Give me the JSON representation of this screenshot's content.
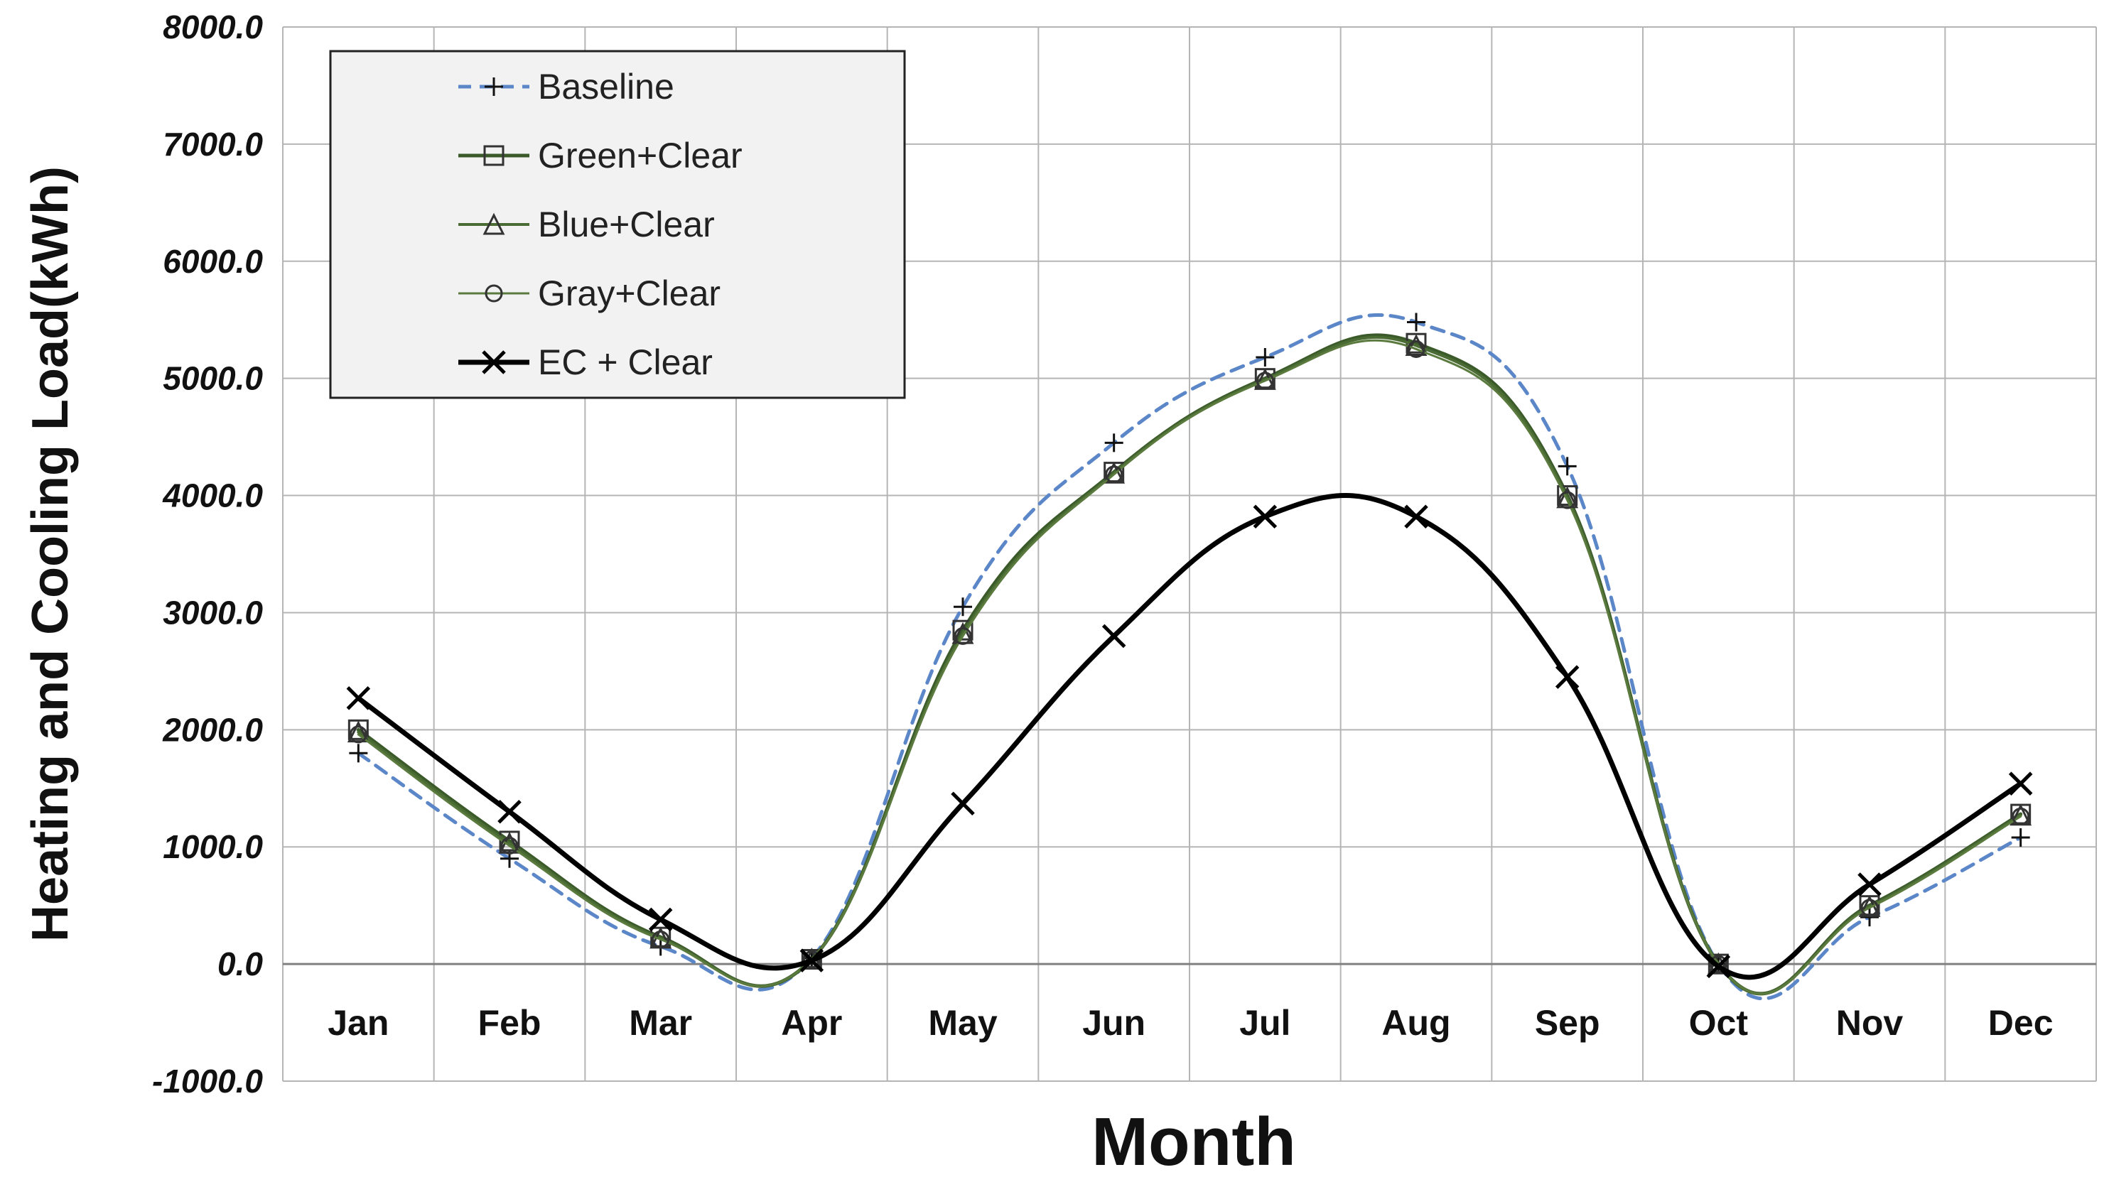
{
  "chart_data": {
    "type": "line",
    "title": "",
    "xlabel": "Month",
    "ylabel": "Heating and Cooling Load(kWh)",
    "ylim": [
      -1000,
      8000
    ],
    "yticks": [
      "8000.0",
      "7000.0",
      "6000.0",
      "5000.0",
      "4000.0",
      "3000.0",
      "2000.0",
      "1000.0",
      "0.0",
      "-1000.0"
    ],
    "ytick_values": [
      8000,
      7000,
      6000,
      5000,
      4000,
      3000,
      2000,
      1000,
      0,
      -1000
    ],
    "grid": true,
    "legend_position": "top-left",
    "categories": [
      "Jan",
      "Feb",
      "Mar",
      "Apr",
      "May",
      "Jun",
      "Jul",
      "Aug",
      "Sep",
      "Oct",
      "Nov",
      "Dec"
    ],
    "series": [
      {
        "name": "Baseline",
        "marker": "plus",
        "color": "#5b86c8",
        "dashed": true,
        "width": 5,
        "values": [
          1800,
          900,
          150,
          50,
          3050,
          4450,
          5180,
          5480,
          4250,
          0,
          400,
          1080
        ]
      },
      {
        "name": "Green+Clear",
        "marker": "square",
        "color": "#3b5a2a",
        "dashed": false,
        "width": 5,
        "values": [
          2000,
          1050,
          230,
          40,
          2850,
          4200,
          5000,
          5300,
          4000,
          0,
          500,
          1280
        ]
      },
      {
        "name": "Blue+Clear",
        "marker": "triangle",
        "color": "#4a6b33",
        "dashed": false,
        "width": 4,
        "values": [
          1980,
          1030,
          220,
          40,
          2820,
          4190,
          4990,
          5280,
          3980,
          0,
          490,
          1270
        ]
      },
      {
        "name": "Gray+Clear",
        "marker": "circle",
        "color": "#5a7a3e",
        "dashed": false,
        "width": 3,
        "values": [
          1960,
          1010,
          210,
          40,
          2800,
          4180,
          4980,
          5250,
          3960,
          0,
          480,
          1260
        ]
      },
      {
        "name": "EC + Clear",
        "marker": "x",
        "color": "#000000",
        "dashed": false,
        "width": 7,
        "values": [
          2270,
          1300,
          380,
          30,
          1370,
          2800,
          3820,
          3820,
          2450,
          -20,
          680,
          1540
        ]
      }
    ]
  }
}
